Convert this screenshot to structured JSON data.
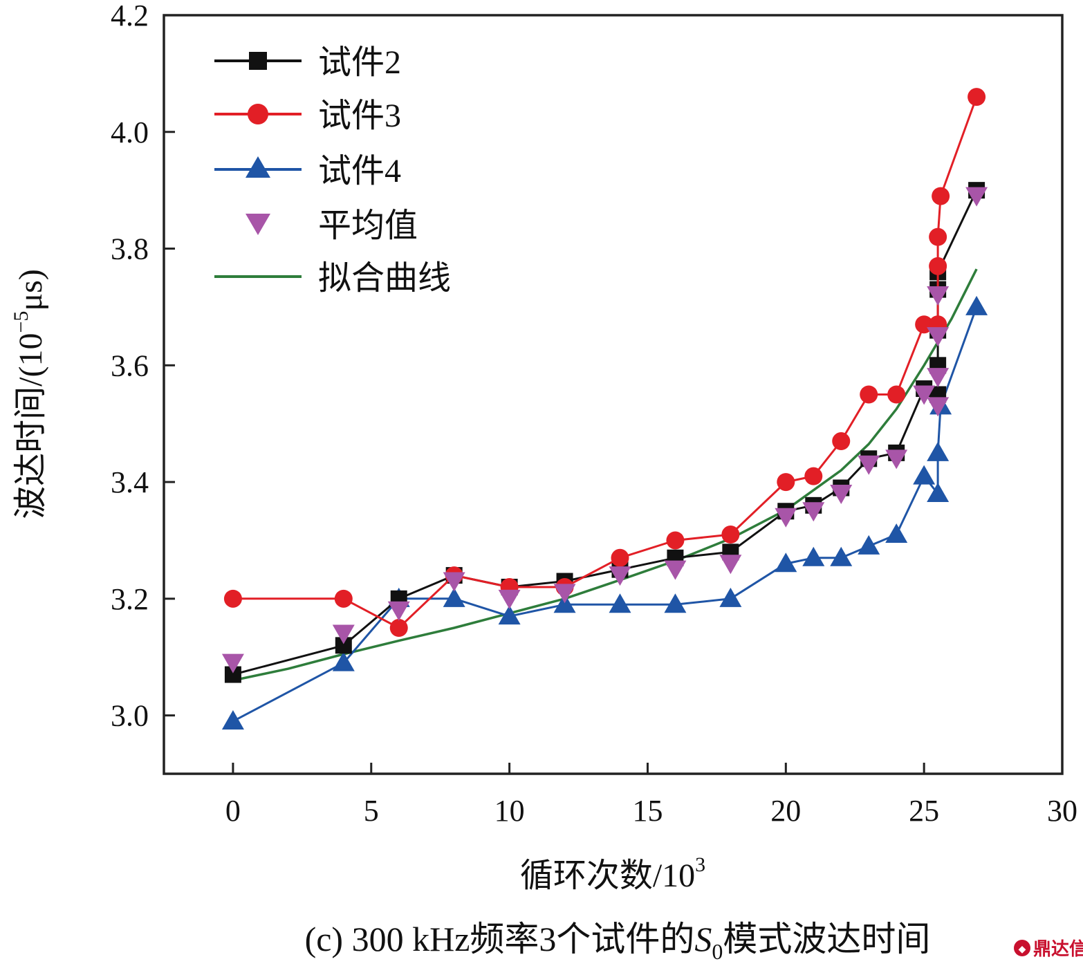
{
  "colors": {
    "axis": "#222222",
    "series_2": "#111111",
    "series_3": "#e21f26",
    "series_4": "#1f55a6",
    "average": "#a855a8",
    "fit": "#2e7d3b",
    "watermark": "#c8102e"
  },
  "caption": {
    "prefix": "(c) 300 kHz频率3个试件的",
    "symbol": "S",
    "subscript": "0",
    "suffix": "模式波达时间"
  },
  "watermark": {
    "text": "鼎达信"
  },
  "chart_data": {
    "type": "line",
    "xlabel": "循环次数/10",
    "xlabel_sup": "3",
    "ylabel": "波达时间/(10",
    "ylabel_sup": "−5",
    "ylabel_end": "μs)",
    "xlim": [
      -2.5,
      30
    ],
    "ylim": [
      2.9,
      4.2
    ],
    "xticks": [
      0,
      5,
      10,
      15,
      20,
      25,
      30
    ],
    "yticks": [
      3.0,
      3.2,
      3.4,
      3.6,
      3.8,
      4.0,
      4.2
    ],
    "ytick_labels": [
      "3.0",
      "3.2",
      "3.4",
      "3.6",
      "3.8",
      "4.0",
      "4.2"
    ],
    "grid": false,
    "legend_position": "top-left",
    "series": [
      {
        "name": "试件2",
        "marker": "square",
        "line": true,
        "x": [
          0,
          4,
          6,
          8,
          10,
          12,
          14,
          16,
          18,
          20,
          21,
          22,
          23,
          24,
          25,
          25.5,
          25.5,
          25.5,
          25.5,
          25.5,
          26.9
        ],
        "y": [
          3.07,
          3.12,
          3.2,
          3.24,
          3.22,
          3.23,
          3.25,
          3.27,
          3.28,
          3.35,
          3.36,
          3.39,
          3.44,
          3.45,
          3.56,
          3.55,
          3.6,
          3.66,
          3.73,
          3.76,
          3.9
        ]
      },
      {
        "name": "试件3",
        "marker": "circle",
        "line": true,
        "x": [
          0,
          4,
          6,
          8,
          10,
          12,
          14,
          16,
          18,
          20,
          21,
          22,
          23,
          24,
          25,
          25.5,
          25.5,
          25.5,
          25.5,
          25.6,
          26.9
        ],
        "y": [
          3.2,
          3.2,
          3.15,
          3.24,
          3.22,
          3.22,
          3.27,
          3.3,
          3.31,
          3.4,
          3.41,
          3.47,
          3.55,
          3.55,
          3.67,
          3.67,
          3.67,
          3.77,
          3.82,
          3.89,
          4.06
        ]
      },
      {
        "name": "试件4",
        "marker": "triangle-up",
        "line": true,
        "x": [
          0,
          4,
          6,
          8,
          10,
          12,
          14,
          16,
          18,
          20,
          21,
          22,
          23,
          24,
          25,
          25.5,
          25.5,
          25.6,
          26.9
        ],
        "y": [
          2.99,
          3.09,
          3.2,
          3.2,
          3.17,
          3.19,
          3.19,
          3.19,
          3.2,
          3.26,
          3.27,
          3.27,
          3.29,
          3.31,
          3.41,
          3.38,
          3.45,
          3.53,
          3.7
        ]
      },
      {
        "name": "平均值",
        "marker": "triangle-down",
        "line": false,
        "x": [
          0,
          4,
          6,
          8,
          10,
          12,
          14,
          16,
          18,
          20,
          21,
          22,
          23,
          24,
          25,
          25.5,
          25.5,
          25.5,
          25.5,
          26.9
        ],
        "y": [
          3.09,
          3.14,
          3.18,
          3.23,
          3.2,
          3.21,
          3.24,
          3.25,
          3.26,
          3.34,
          3.35,
          3.38,
          3.43,
          3.44,
          3.55,
          3.53,
          3.58,
          3.65,
          3.72,
          3.89
        ]
      },
      {
        "name": "拟合曲线",
        "marker": "none",
        "line": true,
        "x": [
          0,
          2,
          4,
          6,
          8,
          10,
          12,
          14,
          16,
          18,
          20,
          22,
          23,
          24,
          25,
          26,
          26.9
        ],
        "y": [
          3.06,
          3.08,
          3.105,
          3.128,
          3.15,
          3.175,
          3.2,
          3.232,
          3.265,
          3.303,
          3.352,
          3.42,
          3.465,
          3.525,
          3.6,
          3.68,
          3.765
        ]
      }
    ]
  }
}
